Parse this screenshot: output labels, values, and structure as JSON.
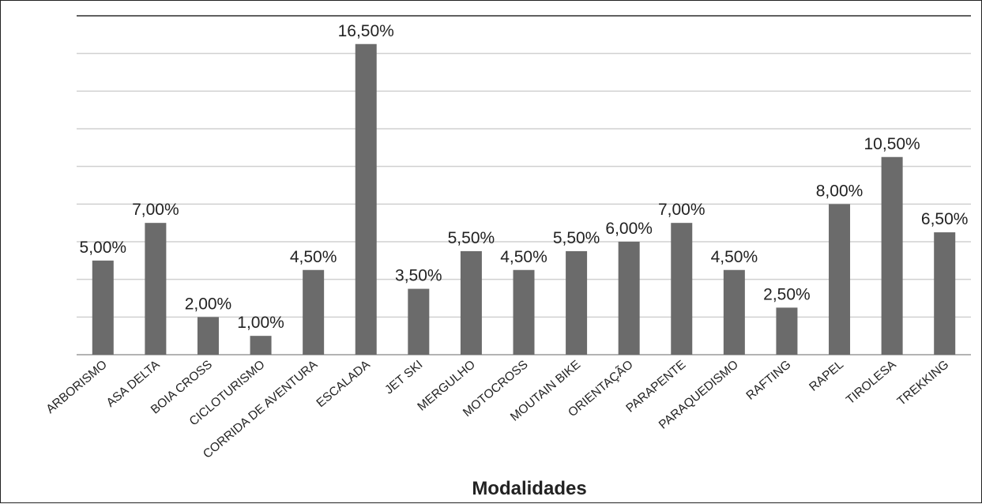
{
  "chart_data": {
    "type": "bar",
    "title": "",
    "xlabel": "Modalidades",
    "ylabel": "",
    "ylim": [
      0,
      18
    ],
    "grid": true,
    "categories": [
      "ARBORISMO",
      "ASA DELTA",
      "BOIA CROSS",
      "CICLOTURISMO",
      "CORRIDA DE AVENTURA",
      "ESCALADA",
      "JET SKI",
      "MERGULHO",
      "MOTOCROSS",
      "MOUTAIN BIKE",
      "ORIENTAÇÃO",
      "PARAPENTE",
      "PARAQUEDISMO",
      "RAFTING",
      "RAPEL",
      "TIROLESA",
      "TREKKING"
    ],
    "values": [
      5.0,
      7.0,
      2.0,
      1.0,
      4.5,
      16.5,
      3.5,
      5.5,
      4.5,
      5.5,
      6.0,
      7.0,
      4.5,
      2.5,
      8.0,
      10.5,
      6.5
    ],
    "data_labels": [
      "5,00%",
      "7,00%",
      "2,00%",
      "1,00%",
      "4,50%",
      "16,50%",
      "3,50%",
      "5,50%",
      "4,50%",
      "5,50%",
      "6,00%",
      "7,00%",
      "4,50%",
      "2,50%",
      "8,00%",
      "10,50%",
      "6,50%"
    ],
    "colors": {
      "bar": "#6b6b6b",
      "grid": "#d0d0d0",
      "axis": "#9a9a9a",
      "text": "#222222"
    }
  }
}
